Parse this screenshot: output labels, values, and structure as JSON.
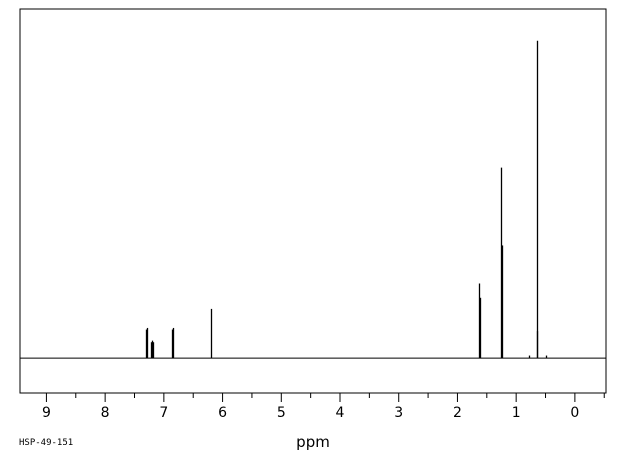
{
  "chart_data": {
    "type": "line",
    "title": "",
    "xlabel": "ppm",
    "ylabel": "",
    "sample_id": "HSP-49-151",
    "xlim": [
      9.45,
      -0.53
    ],
    "ylim": [
      -0.11,
      1.1
    ],
    "x_ticks": [
      9,
      8,
      7,
      6,
      5,
      4,
      3,
      2,
      1,
      0
    ],
    "x_tick_labels": [
      "9",
      "8",
      "7",
      "6",
      "5",
      "4",
      "3",
      "2",
      "1",
      "0"
    ],
    "x_minor_step": 0.5,
    "grid": false,
    "line_color": "#000000",
    "series": [
      {
        "peaks": [
          {
            "ppm": 7.31,
            "height": 0.09
          },
          {
            "ppm": 7.29,
            "height": 0.095
          },
          {
            "ppm": 7.22,
            "height": 0.05
          },
          {
            "ppm": 7.2,
            "height": 0.055
          },
          {
            "ppm": 7.18,
            "height": 0.05
          },
          {
            "ppm": 6.86,
            "height": 0.09
          },
          {
            "ppm": 6.84,
            "height": 0.095
          },
          {
            "ppm": 6.2,
            "height": 0.155
          },
          {
            "ppm": 1.63,
            "height": 0.235
          },
          {
            "ppm": 1.61,
            "height": 0.19
          },
          {
            "ppm": 1.26,
            "height": 0.6
          },
          {
            "ppm": 1.24,
            "height": 0.355
          },
          {
            "ppm": 0.78,
            "height": 0.008
          },
          {
            "ppm": 0.65,
            "height": 1.0
          },
          {
            "ppm": 0.64,
            "height": 0.085
          },
          {
            "ppm": 0.5,
            "height": 0.008
          }
        ]
      }
    ]
  }
}
